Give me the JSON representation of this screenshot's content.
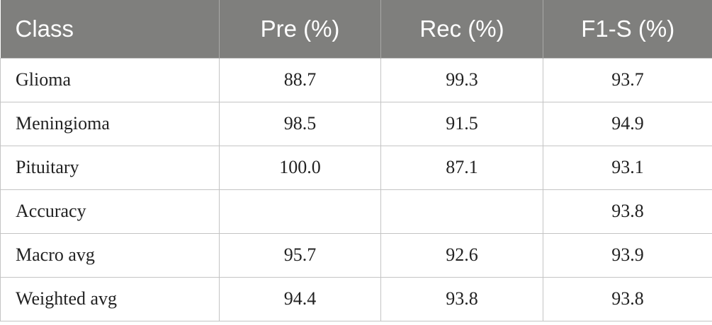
{
  "table": {
    "headers": [
      "Class",
      "Pre (%)",
      "Rec (%)",
      "F1-S (%)"
    ],
    "rows": [
      [
        "Glioma",
        "88.7",
        "99.3",
        "93.7"
      ],
      [
        "Meningioma",
        "98.5",
        "91.5",
        "94.9"
      ],
      [
        "Pituitary",
        "100.0",
        "87.1",
        "93.1"
      ],
      [
        "Accuracy",
        "",
        "",
        "93.8"
      ],
      [
        "Macro avg",
        "95.7",
        "92.6",
        "93.9"
      ],
      [
        "Weighted avg",
        "94.4",
        "93.8",
        "93.8"
      ]
    ]
  },
  "colors": {
    "header_background": "#7f7f7d",
    "header_text": "#ffffff",
    "grid_lines": "#c4c4c4"
  }
}
